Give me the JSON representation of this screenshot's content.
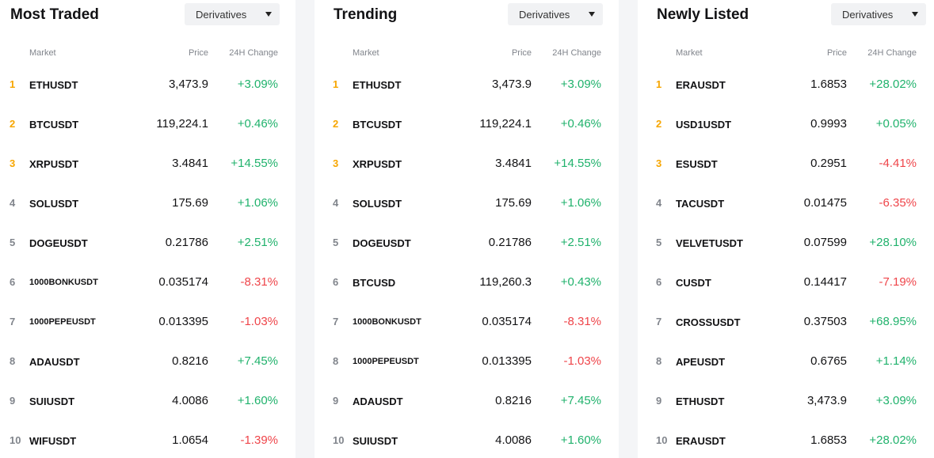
{
  "column_headers": {
    "market": "Market",
    "price": "Price",
    "change": "24H Change"
  },
  "colors": {
    "up": "#20b26c",
    "down": "#ef454a",
    "top_rank": "#f7a600",
    "rank": "#81858c"
  },
  "panels": [
    {
      "title": "Most Traded",
      "dropdown": "Derivatives",
      "rows": [
        {
          "rank": "1",
          "symbol": "ETHUSDT",
          "price": "3,473.9",
          "change": "+3.09%",
          "dir": "up"
        },
        {
          "rank": "2",
          "symbol": "BTCUSDT",
          "price": "119,224.1",
          "change": "+0.46%",
          "dir": "up"
        },
        {
          "rank": "3",
          "symbol": "XRPUSDT",
          "price": "3.4841",
          "change": "+14.55%",
          "dir": "up"
        },
        {
          "rank": "4",
          "symbol": "SOLUSDT",
          "price": "175.69",
          "change": "+1.06%",
          "dir": "up"
        },
        {
          "rank": "5",
          "symbol": "DOGEUSDT",
          "price": "0.21786",
          "change": "+2.51%",
          "dir": "up"
        },
        {
          "rank": "6",
          "symbol": "1000BONKUSDT",
          "price": "0.035174",
          "change": "-8.31%",
          "dir": "down"
        },
        {
          "rank": "7",
          "symbol": "1000PEPEUSDT",
          "price": "0.013395",
          "change": "-1.03%",
          "dir": "down"
        },
        {
          "rank": "8",
          "symbol": "ADAUSDT",
          "price": "0.8216",
          "change": "+7.45%",
          "dir": "up"
        },
        {
          "rank": "9",
          "symbol": "SUIUSDT",
          "price": "4.0086",
          "change": "+1.60%",
          "dir": "up"
        },
        {
          "rank": "10",
          "symbol": "WIFUSDT",
          "price": "1.0654",
          "change": "-1.39%",
          "dir": "down"
        }
      ]
    },
    {
      "title": "Trending",
      "dropdown": "Derivatives",
      "rows": [
        {
          "rank": "1",
          "symbol": "ETHUSDT",
          "price": "3,473.9",
          "change": "+3.09%",
          "dir": "up"
        },
        {
          "rank": "2",
          "symbol": "BTCUSDT",
          "price": "119,224.1",
          "change": "+0.46%",
          "dir": "up"
        },
        {
          "rank": "3",
          "symbol": "XRPUSDT",
          "price": "3.4841",
          "change": "+14.55%",
          "dir": "up"
        },
        {
          "rank": "4",
          "symbol": "SOLUSDT",
          "price": "175.69",
          "change": "+1.06%",
          "dir": "up"
        },
        {
          "rank": "5",
          "symbol": "DOGEUSDT",
          "price": "0.21786",
          "change": "+2.51%",
          "dir": "up"
        },
        {
          "rank": "6",
          "symbol": "BTCUSD",
          "price": "119,260.3",
          "change": "+0.43%",
          "dir": "up"
        },
        {
          "rank": "7",
          "symbol": "1000BONKUSDT",
          "price": "0.035174",
          "change": "-8.31%",
          "dir": "down"
        },
        {
          "rank": "8",
          "symbol": "1000PEPEUSDT",
          "price": "0.013395",
          "change": "-1.03%",
          "dir": "down"
        },
        {
          "rank": "9",
          "symbol": "ADAUSDT",
          "price": "0.8216",
          "change": "+7.45%",
          "dir": "up"
        },
        {
          "rank": "10",
          "symbol": "SUIUSDT",
          "price": "4.0086",
          "change": "+1.60%",
          "dir": "up"
        }
      ]
    },
    {
      "title": "Newly Listed",
      "dropdown": "Derivatives",
      "rows": [
        {
          "rank": "1",
          "symbol": "ERAUSDT",
          "price": "1.6853",
          "change": "+28.02%",
          "dir": "up"
        },
        {
          "rank": "2",
          "symbol": "USD1USDT",
          "price": "0.9993",
          "change": "+0.05%",
          "dir": "up"
        },
        {
          "rank": "3",
          "symbol": "ESUSDT",
          "price": "0.2951",
          "change": "-4.41%",
          "dir": "down"
        },
        {
          "rank": "4",
          "symbol": "TACUSDT",
          "price": "0.01475",
          "change": "-6.35%",
          "dir": "down"
        },
        {
          "rank": "5",
          "symbol": "VELVETUSDT",
          "price": "0.07599",
          "change": "+28.10%",
          "dir": "up"
        },
        {
          "rank": "6",
          "symbol": "CUSDT",
          "price": "0.14417",
          "change": "-7.19%",
          "dir": "down"
        },
        {
          "rank": "7",
          "symbol": "CROSSUSDT",
          "price": "0.37503",
          "change": "+68.95%",
          "dir": "up"
        },
        {
          "rank": "8",
          "symbol": "APEUSDT",
          "price": "0.6765",
          "change": "+1.14%",
          "dir": "up"
        },
        {
          "rank": "9",
          "symbol": "ETHUSDT",
          "price": "3,473.9",
          "change": "+3.09%",
          "dir": "up"
        },
        {
          "rank": "10",
          "symbol": "ERAUSDT",
          "price": "1.6853",
          "change": "+28.02%",
          "dir": "up"
        }
      ]
    }
  ]
}
